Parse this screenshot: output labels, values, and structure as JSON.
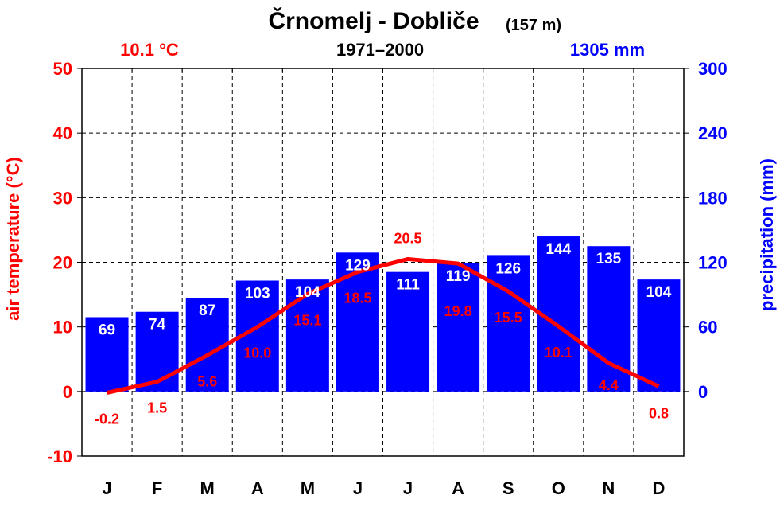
{
  "chart_data": {
    "type": "bar+line",
    "title": "Črnomelj - Dobliče",
    "elevation": "(157 m)",
    "period": "1971–2000",
    "annual_temperature": "10.1 °C",
    "annual_precipitation": "1305 mm",
    "categories": [
      "J",
      "F",
      "M",
      "A",
      "M",
      "J",
      "J",
      "A",
      "S",
      "O",
      "N",
      "D"
    ],
    "series": [
      {
        "name": "air temperature (°C)",
        "type": "line",
        "axis": "left",
        "color": "#ff0000",
        "values": [
          -0.2,
          1.5,
          5.6,
          10.0,
          15.1,
          18.5,
          20.5,
          19.8,
          15.5,
          10.1,
          4.4,
          0.8
        ],
        "labels": [
          "-0.2",
          "1.5",
          "5.6",
          "10.0",
          "15.1",
          "18.5",
          "20.5",
          "19.8",
          "15.5",
          "10.1",
          "4.4",
          "0.8"
        ]
      },
      {
        "name": "precipitation (mm)",
        "type": "bar",
        "axis": "right",
        "color": "#0000ff",
        "values": [
          69,
          74,
          87,
          103,
          104,
          129,
          111,
          119,
          126,
          144,
          135,
          104
        ]
      }
    ],
    "ylabel_left": "air temperature (°C)",
    "ylabel_right": "precipitation (mm)",
    "ylim_left": [
      -10,
      50
    ],
    "ylim_right": [
      -60,
      300
    ],
    "yticks_left": [
      "50",
      "40",
      "30",
      "20",
      "10",
      "0",
      "-10"
    ],
    "yticks_right": [
      "300",
      "240",
      "180",
      "120",
      "60",
      "0"
    ],
    "grid": true
  }
}
